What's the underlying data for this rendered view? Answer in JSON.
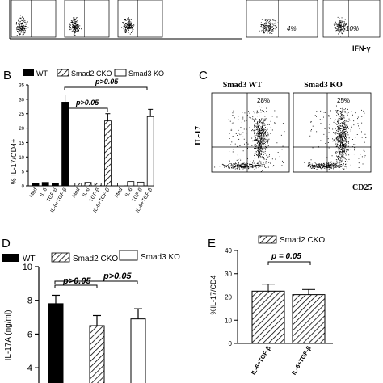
{
  "panel_top": {
    "quadrant_labels": [
      "4%",
      "10%"
    ],
    "x_axis_label": "IFN-γ"
  },
  "panel_b": {
    "letter": "B",
    "legend": [
      "WT",
      "Smad2 CKO",
      "Smad3 KO"
    ],
    "ylabel": "% IL-17/CD4+",
    "yticks": [
      "0",
      "5",
      "10",
      "15",
      "20",
      "25",
      "30",
      "35"
    ],
    "bracket_labels": [
      "p>0.05",
      "p>0.05"
    ],
    "tick_labels": [
      "Med",
      "IL-6",
      "TGF-β",
      "IL-6+TGF-β",
      "Med",
      "IL-6",
      "TGF-β",
      "IL-6+TGF-β",
      "Med",
      "IL-6",
      "TGF-β",
      "IL-6+TGF-β"
    ]
  },
  "panel_c": {
    "letter": "C",
    "titles": [
      "Smad3  WT",
      "Smad3 KO"
    ],
    "percents": [
      "28%",
      "25%"
    ],
    "ylabel": "IL-17",
    "xlabel": "CD25"
  },
  "panel_d": {
    "letter": "D",
    "legend": [
      "WT",
      "Smad2 CKO",
      "Smad3 KO"
    ],
    "ylabel": "IL-17A (ng/ml)",
    "yticks": [
      "4",
      "6",
      "8",
      "10"
    ],
    "bracket_labels": [
      "p>0.05",
      "p>0.05"
    ]
  },
  "panel_e": {
    "letter": "E",
    "legend": [
      "Smad2 CKO"
    ],
    "ylabel": "%IL-17/CD4",
    "yticks": [
      "0",
      "10",
      "20",
      "30",
      "40"
    ],
    "bracket_label": "p = 0.05",
    "tick_labels": [
      "IL-6+TGF-β",
      "IL-6+TGF-β"
    ]
  },
  "chart_data": [
    {
      "type": "bar",
      "panel": "B",
      "categories": [
        "Med",
        "IL-6",
        "TGF-β",
        "IL-6+TGF-β"
      ],
      "series": [
        {
          "name": "WT",
          "values": [
            1.0,
            1.2,
            1.0,
            29.0
          ],
          "errors": [
            0,
            0,
            0,
            2.5
          ]
        },
        {
          "name": "Smad2 CKO",
          "values": [
            1.0,
            1.2,
            1.0,
            22.5
          ],
          "errors": [
            0,
            0,
            0,
            2.5
          ]
        },
        {
          "name": "Smad3 KO",
          "values": [
            1.0,
            1.5,
            1.3,
            24.0
          ],
          "errors": [
            0,
            0,
            0,
            2.5
          ]
        }
      ],
      "ylabel": "% IL-17/CD4+",
      "ylim": [
        0,
        35
      ],
      "annotations": [
        "p>0.05",
        "p>0.05"
      ]
    },
    {
      "type": "bar",
      "panel": "D",
      "categories": [
        "WT",
        "Smad2 CKO",
        "Smad3 KO"
      ],
      "values": [
        7.8,
        6.5,
        6.9
      ],
      "errors": [
        0.5,
        0.6,
        0.6
      ],
      "ylabel": "IL-17A (ng/ml)",
      "ylim": [
        3,
        10
      ],
      "annotations": [
        "p>0.05",
        "p>0.05"
      ]
    },
    {
      "type": "bar",
      "panel": "E",
      "categories": [
        "IL-6+TGF-β",
        "IL-6+TGF-β"
      ],
      "values": [
        22.5,
        21.0
      ],
      "errors": [
        3.0,
        2.2
      ],
      "ylabel": "%IL-17/CD4",
      "ylim": [
        0,
        40
      ],
      "annotations": [
        "p = 0.05"
      ]
    }
  ]
}
